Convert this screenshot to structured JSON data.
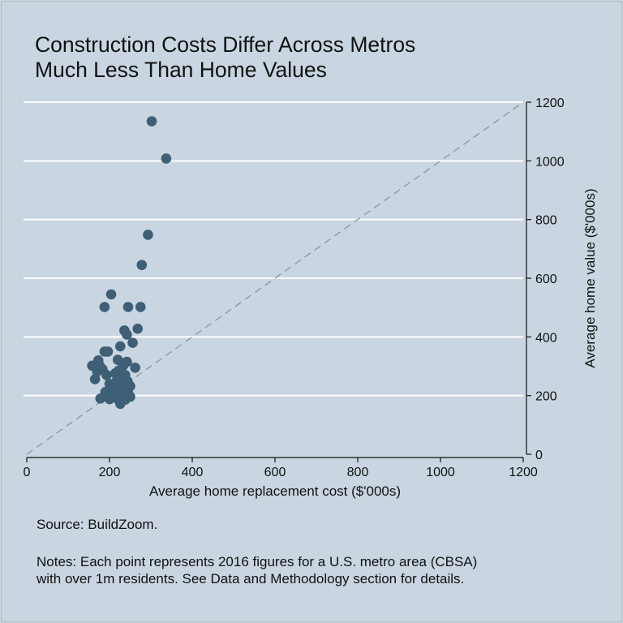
{
  "chart_data": {
    "type": "scatter",
    "title_lines": [
      "Construction Costs Differ Across Metros",
      "Much Less Than Home Values"
    ],
    "xlabel": "Average home replacement cost ($'000s)",
    "ylabel": "Average home value ($'000s)",
    "xlim": [
      0,
      1200
    ],
    "ylim": [
      0,
      1200
    ],
    "xticks": [
      "0",
      "200",
      "400",
      "600",
      "800",
      "1000",
      "1200"
    ],
    "yticks": [
      "0",
      "200",
      "400",
      "600",
      "800",
      "1000",
      "1200"
    ],
    "y_axis_side": "right",
    "grid": "horizontal",
    "reference_line": {
      "type": "dashed",
      "from": [
        0,
        0
      ],
      "to": [
        1200,
        1200
      ]
    },
    "points": [
      {
        "x": 302,
        "y": 1135
      },
      {
        "x": 337,
        "y": 1008
      },
      {
        "x": 293,
        "y": 748
      },
      {
        "x": 278,
        "y": 645
      },
      {
        "x": 204,
        "y": 545
      },
      {
        "x": 188,
        "y": 502
      },
      {
        "x": 245,
        "y": 502
      },
      {
        "x": 275,
        "y": 502
      },
      {
        "x": 268,
        "y": 428
      },
      {
        "x": 236,
        "y": 422
      },
      {
        "x": 242,
        "y": 408
      },
      {
        "x": 256,
        "y": 380
      },
      {
        "x": 226,
        "y": 368
      },
      {
        "x": 188,
        "y": 350
      },
      {
        "x": 196,
        "y": 350
      },
      {
        "x": 173,
        "y": 320
      },
      {
        "x": 220,
        "y": 322
      },
      {
        "x": 242,
        "y": 315
      },
      {
        "x": 158,
        "y": 302
      },
      {
        "x": 176,
        "y": 302
      },
      {
        "x": 233,
        "y": 302
      },
      {
        "x": 262,
        "y": 295
      },
      {
        "x": 183,
        "y": 290
      },
      {
        "x": 170,
        "y": 282
      },
      {
        "x": 222,
        "y": 285
      },
      {
        "x": 214,
        "y": 276
      },
      {
        "x": 193,
        "y": 270
      },
      {
        "x": 238,
        "y": 270
      },
      {
        "x": 165,
        "y": 256
      },
      {
        "x": 228,
        "y": 260
      },
      {
        "x": 218,
        "y": 252
      },
      {
        "x": 244,
        "y": 248
      },
      {
        "x": 200,
        "y": 240
      },
      {
        "x": 232,
        "y": 236
      },
      {
        "x": 250,
        "y": 232
      },
      {
        "x": 222,
        "y": 226
      },
      {
        "x": 242,
        "y": 220
      },
      {
        "x": 190,
        "y": 212
      },
      {
        "x": 208,
        "y": 210
      },
      {
        "x": 228,
        "y": 208
      },
      {
        "x": 246,
        "y": 206
      },
      {
        "x": 232,
        "y": 200
      },
      {
        "x": 250,
        "y": 196
      },
      {
        "x": 210,
        "y": 194
      },
      {
        "x": 178,
        "y": 190
      },
      {
        "x": 200,
        "y": 188
      },
      {
        "x": 220,
        "y": 188
      },
      {
        "x": 238,
        "y": 186
      },
      {
        "x": 226,
        "y": 172
      }
    ]
  },
  "source": "Source: BuildZoom.",
  "notes_lines": [
    "Notes: Each point represents 2016 figures for a U.S. metro area (CBSA)",
    "with over 1m residents. See Data and Methodology section for details."
  ],
  "colors": {
    "background": "#c9d6e1",
    "marker": "#3e5f76",
    "grid": "#ffffff",
    "reference_line": "#8596a6",
    "text": "#111111"
  }
}
